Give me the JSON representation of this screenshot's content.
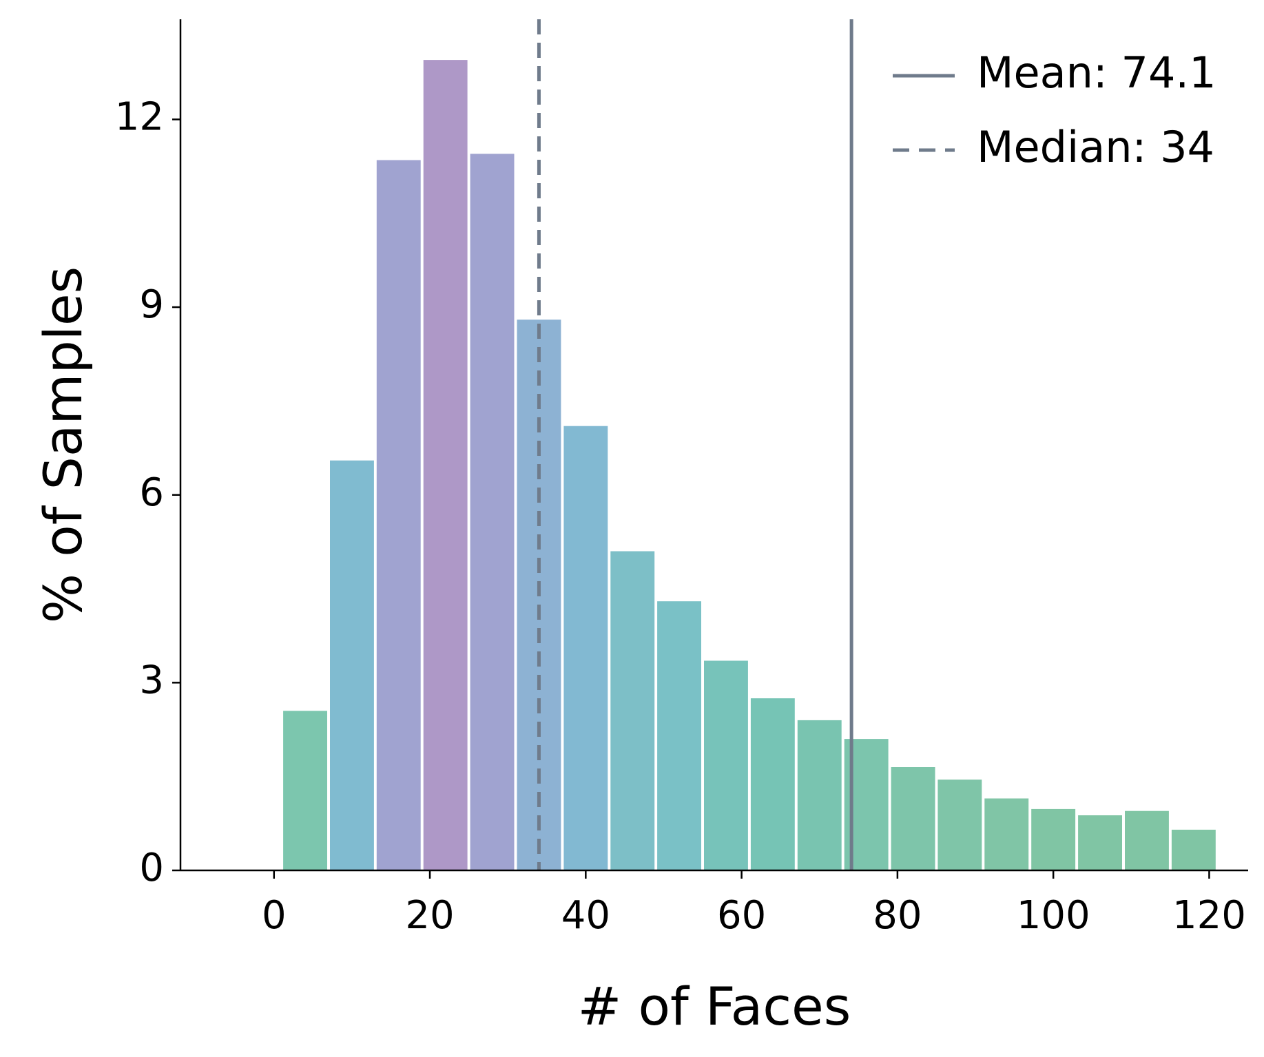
{
  "chart_data": {
    "type": "bar",
    "title": "",
    "xlabel": "# of Faces",
    "ylabel": "% of Samples",
    "xlim": [
      -12,
      125
    ],
    "ylim": [
      0,
      13.6
    ],
    "xticks": [
      0,
      20,
      40,
      60,
      80,
      100,
      120
    ],
    "yticks": [
      0,
      3,
      6,
      9,
      12
    ],
    "bin_width": 6,
    "bins": [
      {
        "x0": 1,
        "x1": 7,
        "value": 2.55,
        "color": "#7cc6ae"
      },
      {
        "x0": 7,
        "x1": 13,
        "value": 6.55,
        "color": "#80bbd0"
      },
      {
        "x0": 13,
        "x1": 19,
        "value": 11.35,
        "color": "#a0a3d0"
      },
      {
        "x0": 19,
        "x1": 25,
        "value": 12.95,
        "color": "#ae98c7"
      },
      {
        "x0": 25,
        "x1": 31,
        "value": 11.45,
        "color": "#a0a3d0"
      },
      {
        "x0": 31,
        "x1": 37,
        "value": 8.8,
        "color": "#8db2d3"
      },
      {
        "x0": 37,
        "x1": 43,
        "value": 7.1,
        "color": "#82b9d2"
      },
      {
        "x0": 43,
        "x1": 49,
        "value": 5.1,
        "color": "#7dbfc7"
      },
      {
        "x0": 49,
        "x1": 55,
        "value": 4.3,
        "color": "#7ac1c6"
      },
      {
        "x0": 55,
        "x1": 61,
        "value": 3.35,
        "color": "#77c3ba"
      },
      {
        "x0": 61,
        "x1": 67,
        "value": 2.75,
        "color": "#76c4b5"
      },
      {
        "x0": 67,
        "x1": 73,
        "value": 2.4,
        "color": "#79c4b0"
      },
      {
        "x0": 73,
        "x1": 79,
        "value": 2.1,
        "color": "#7cc5ad"
      },
      {
        "x0": 79,
        "x1": 85,
        "value": 1.65,
        "color": "#7ec5aa"
      },
      {
        "x0": 85,
        "x1": 91,
        "value": 1.45,
        "color": "#7fc5a8"
      },
      {
        "x0": 91,
        "x1": 97,
        "value": 1.15,
        "color": "#80c5a6"
      },
      {
        "x0": 97,
        "x1": 103,
        "value": 0.98,
        "color": "#80c5a4"
      },
      {
        "x0": 103,
        "x1": 109,
        "value": 0.88,
        "color": "#80c5a4"
      },
      {
        "x0": 109,
        "x1": 115,
        "value": 0.95,
        "color": "#80c5a4"
      },
      {
        "x0": 115,
        "x1": 121,
        "value": 0.65,
        "color": "#80c5a4"
      }
    ],
    "reference_lines": [
      {
        "label": "Mean: 74.1",
        "x": 74.1,
        "style": "solid",
        "color": "#6f7b8b"
      },
      {
        "label": "Median: 34",
        "x": 34,
        "style": "dashed",
        "color": "#6f7b8b"
      }
    ],
    "legend_position": "top-right",
    "grid": false
  }
}
